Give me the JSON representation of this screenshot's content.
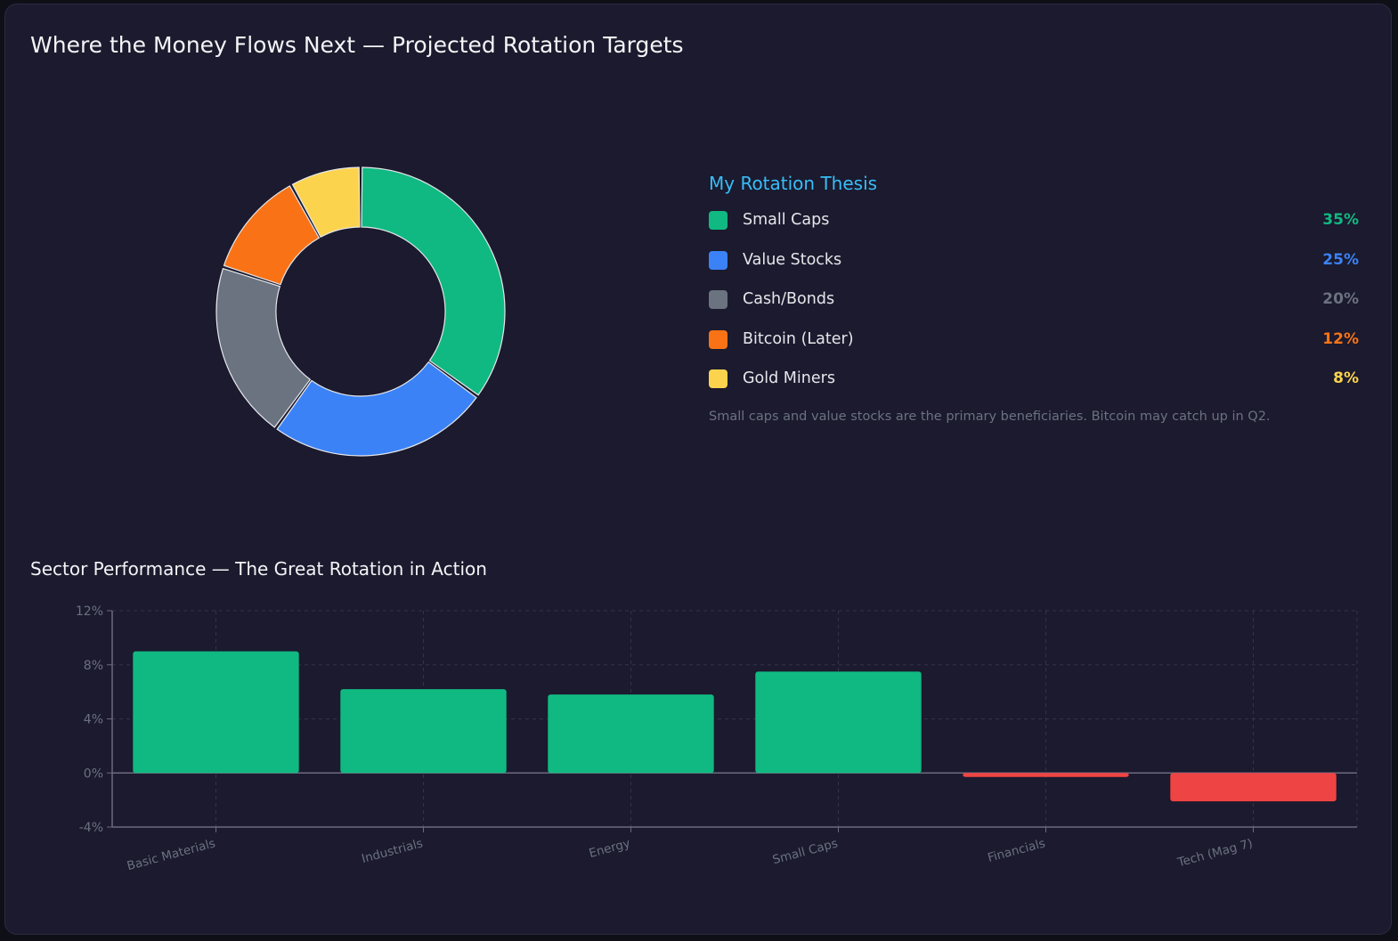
{
  "title": "Where the Money Flows Next — Projected Rotation Targets",
  "legend": {
    "title": "My Rotation Thesis",
    "note": "Small caps and value stocks are the primary beneficiaries. Bitcoin may catch up in Q2."
  },
  "colors": {
    "background": "#1b1a2e",
    "positive": "#10b981",
    "negative": "#ef4444",
    "accent": "#38bdf8"
  },
  "chart_data": [
    {
      "type": "pie",
      "donut": true,
      "title": "My Rotation Thesis",
      "slices": [
        {
          "label": "Small Caps",
          "value": 35,
          "display": "35%",
          "color": "#10b981"
        },
        {
          "label": "Value Stocks",
          "value": 25,
          "display": "25%",
          "color": "#3b82f6"
        },
        {
          "label": "Cash/Bonds",
          "value": 20,
          "display": "20%",
          "color": "#6b7280"
        },
        {
          "label": "Bitcoin (Later)",
          "value": 12,
          "display": "12%",
          "color": "#f97316"
        },
        {
          "label": "Gold Miners",
          "value": 8,
          "display": "8%",
          "color": "#fcd34d"
        }
      ]
    },
    {
      "type": "bar",
      "title": "Sector Performance — The Great Rotation in Action",
      "categories": [
        "Basic Materials",
        "Industrials",
        "Energy",
        "Small Caps",
        "Financials",
        "Tech (Mag 7)"
      ],
      "values": [
        9.0,
        6.2,
        5.8,
        7.5,
        -0.3,
        -2.1
      ],
      "ylim": [
        -4,
        12
      ],
      "yticks": [
        -4,
        0,
        4,
        8,
        12
      ],
      "ytick_labels": [
        "-4%",
        "0%",
        "4%",
        "8%",
        "12%"
      ],
      "grid": true
    }
  ]
}
